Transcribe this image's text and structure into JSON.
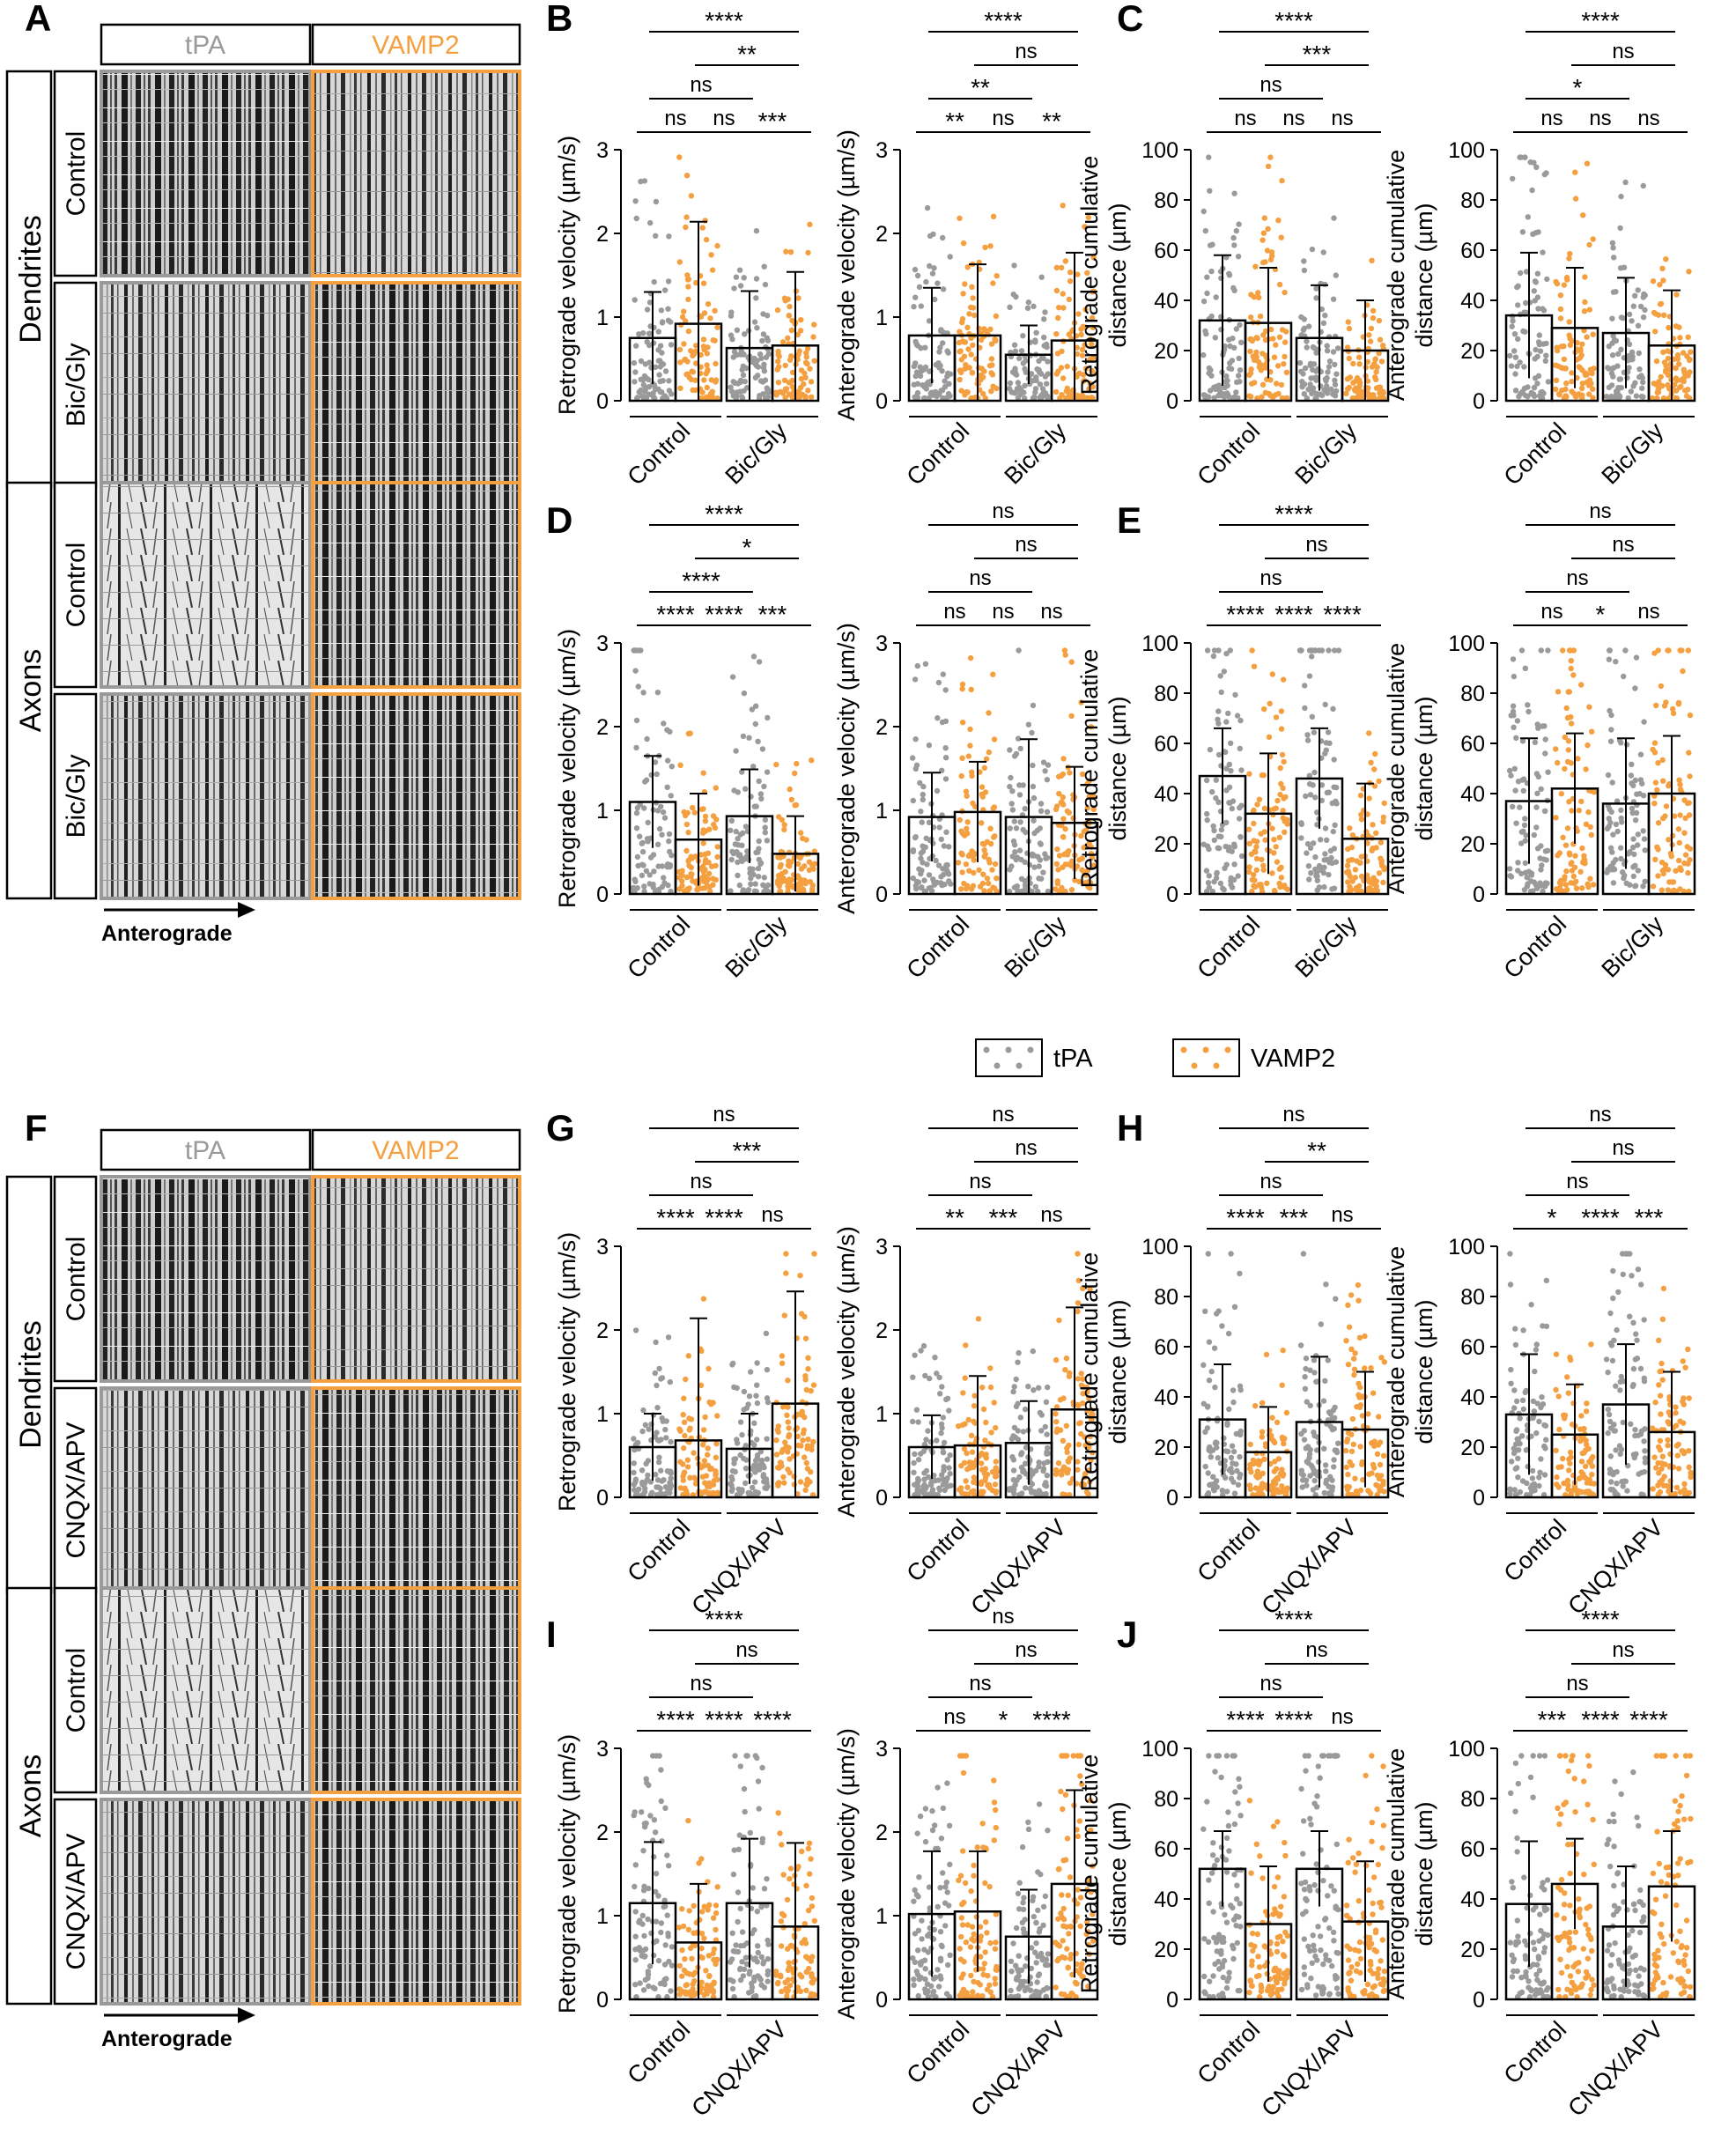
{
  "colors": {
    "tpa": "#9a9a9a",
    "vamp2": "#f5a040",
    "frame_tpa": "#9a9a9a",
    "frame_vamp2": "#f5a040"
  },
  "kymo": {
    "tpa": "tPA",
    "vamp2": "VAMP2",
    "dendrites": "Dendrites",
    "axons": "Axons",
    "control": "Control",
    "bicgly": "Bic/Gly",
    "cnqx": "CNQX/APV",
    "anterograde": "Anterograde"
  },
  "legend": {
    "tpa": "tPA",
    "vamp2": "VAMP2"
  },
  "panels": [
    {
      "letter": "A"
    },
    {
      "letter": "B"
    },
    {
      "letter": "C"
    },
    {
      "letter": "D"
    },
    {
      "letter": "E"
    },
    {
      "letter": "F"
    },
    {
      "letter": "G"
    },
    {
      "letter": "H"
    },
    {
      "letter": "I"
    },
    {
      "letter": "J"
    }
  ],
  "chart_data": [
    {
      "id": "B1",
      "type": "bar",
      "ylabel": "Retrograde velocity (µm/s)",
      "ylim": [
        0,
        3
      ],
      "yticks": [
        0,
        1,
        2,
        3
      ],
      "groups": [
        "Control",
        "Bic/Gly"
      ],
      "series": [
        {
          "name": "tPA",
          "values": [
            0.75,
            0.63
          ]
        },
        {
          "name": "VAMP2",
          "values": [
            0.92,
            0.66
          ]
        }
      ],
      "sd": [
        0.55,
        1.22,
        0.68,
        0.88
      ],
      "sig": [
        "ns",
        "ns",
        "***",
        "ns",
        "**",
        "****"
      ]
    },
    {
      "id": "B2",
      "type": "bar",
      "ylabel": "Anterograde velocity (µm/s)",
      "ylim": [
        0,
        3
      ],
      "yticks": [
        0,
        1,
        2,
        3
      ],
      "groups": [
        "Control",
        "Bic/Gly"
      ],
      "series": [
        {
          "name": "tPA",
          "values": [
            0.78,
            0.55
          ]
        },
        {
          "name": "VAMP2",
          "values": [
            0.78,
            0.72
          ]
        }
      ],
      "sd": [
        0.57,
        0.85,
        0.35,
        1.05
      ],
      "sig": [
        "**",
        "ns",
        "**",
        "**",
        "ns",
        "****"
      ]
    },
    {
      "id": "C1",
      "type": "bar",
      "ylabel": "Retrograde cumulative distance (µm)",
      "ylim": [
        0,
        100
      ],
      "yticks": [
        0,
        20,
        40,
        60,
        80,
        100
      ],
      "groups": [
        "Control",
        "Bic/Gly"
      ],
      "series": [
        {
          "name": "tPA",
          "values": [
            32,
            25
          ]
        },
        {
          "name": "VAMP2",
          "values": [
            31,
            20
          ]
        }
      ],
      "sd": [
        26,
        22,
        21,
        20
      ],
      "sig": [
        "ns",
        "ns",
        "ns",
        "ns",
        "***",
        "****"
      ]
    },
    {
      "id": "C2",
      "type": "bar",
      "ylabel": "Anterograde cumulative distance (µm)",
      "ylim": [
        0,
        100
      ],
      "yticks": [
        0,
        20,
        40,
        60,
        80,
        100
      ],
      "groups": [
        "Control",
        "Bic/Gly"
      ],
      "series": [
        {
          "name": "tPA",
          "values": [
            34,
            27
          ]
        },
        {
          "name": "VAMP2",
          "values": [
            29,
            22
          ]
        }
      ],
      "sd": [
        25,
        24,
        22,
        22
      ],
      "sig": [
        "ns",
        "ns",
        "ns",
        "*",
        "ns",
        "****"
      ]
    },
    {
      "id": "D1",
      "type": "bar",
      "ylabel": "Retrograde velocity (µm/s)",
      "ylim": [
        0,
        3
      ],
      "yticks": [
        0,
        1,
        2,
        3
      ],
      "groups": [
        "Control",
        "Bic/Gly"
      ],
      "series": [
        {
          "name": "tPA",
          "values": [
            1.1,
            0.93
          ]
        },
        {
          "name": "VAMP2",
          "values": [
            0.65,
            0.48
          ]
        }
      ],
      "sd": [
        0.55,
        0.55,
        0.56,
        0.45
      ],
      "sig": [
        "****",
        "****",
        "***",
        "****",
        "*",
        "****"
      ]
    },
    {
      "id": "D2",
      "type": "bar",
      "ylabel": "Anterograde velocity (µm/s)",
      "ylim": [
        0,
        3
      ],
      "yticks": [
        0,
        1,
        2,
        3
      ],
      "groups": [
        "Control",
        "Bic/Gly"
      ],
      "series": [
        {
          "name": "tPA",
          "values": [
            0.92,
            0.92
          ]
        },
        {
          "name": "VAMP2",
          "values": [
            0.98,
            0.85
          ]
        }
      ],
      "sd": [
        0.53,
        0.6,
        0.93,
        0.67
      ],
      "sig": [
        "ns",
        "ns",
        "ns",
        "ns",
        "ns",
        "ns"
      ]
    },
    {
      "id": "E1",
      "type": "bar",
      "ylabel": "Retrograde cumulative distance (µm)",
      "ylim": [
        0,
        100
      ],
      "yticks": [
        0,
        20,
        40,
        60,
        80,
        100
      ],
      "groups": [
        "Control",
        "Bic/Gly"
      ],
      "series": [
        {
          "name": "tPA",
          "values": [
            47,
            46
          ]
        },
        {
          "name": "VAMP2",
          "values": [
            32,
            22
          ]
        }
      ],
      "sd": [
        19,
        24,
        20,
        22
      ],
      "sig": [
        "****",
        "****",
        "****",
        "ns",
        "ns",
        "****"
      ]
    },
    {
      "id": "E2",
      "type": "bar",
      "ylabel": "Anterograde cumulative distance (µm)",
      "ylim": [
        0,
        100
      ],
      "yticks": [
        0,
        20,
        40,
        60,
        80,
        100
      ],
      "groups": [
        "Control",
        "Bic/Gly"
      ],
      "series": [
        {
          "name": "tPA",
          "values": [
            37,
            36
          ]
        },
        {
          "name": "VAMP2",
          "values": [
            42,
            40
          ]
        }
      ],
      "sd": [
        25,
        22,
        26,
        23
      ],
      "sig": [
        "ns",
        "*",
        "ns",
        "ns",
        "ns",
        "ns"
      ]
    },
    {
      "id": "G1",
      "type": "bar",
      "ylabel": "Retrograde velocity (µm/s)",
      "ylim": [
        0,
        3
      ],
      "yticks": [
        0,
        1,
        2,
        3
      ],
      "groups": [
        "Control",
        "CNQX/APV"
      ],
      "series": [
        {
          "name": "tPA",
          "values": [
            0.6,
            0.58
          ]
        },
        {
          "name": "VAMP2",
          "values": [
            0.68,
            1.12
          ]
        }
      ],
      "sd": [
        0.4,
        1.46,
        0.42,
        1.34
      ],
      "sig": [
        "****",
        "****",
        "ns",
        "ns",
        "***",
        "ns"
      ]
    },
    {
      "id": "G2",
      "type": "bar",
      "ylabel": "Anterograde velocity (µm/s)",
      "ylim": [
        0,
        3
      ],
      "yticks": [
        0,
        1,
        2,
        3
      ],
      "groups": [
        "Control",
        "CNQX/APV"
      ],
      "series": [
        {
          "name": "tPA",
          "values": [
            0.6,
            0.65
          ]
        },
        {
          "name": "VAMP2",
          "values": [
            0.62,
            1.05
          ]
        }
      ],
      "sd": [
        0.38,
        0.83,
        0.5,
        1.22
      ],
      "sig": [
        "**",
        "***",
        "ns",
        "ns",
        "ns",
        "ns"
      ]
    },
    {
      "id": "H1",
      "type": "bar",
      "ylabel": "Retrograde cumulative distance (µm)",
      "ylim": [
        0,
        100
      ],
      "yticks": [
        0,
        20,
        40,
        60,
        80,
        100
      ],
      "groups": [
        "Control",
        "CNQX/APV"
      ],
      "series": [
        {
          "name": "tPA",
          "values": [
            31,
            30
          ]
        },
        {
          "name": "VAMP2",
          "values": [
            18,
            27
          ]
        }
      ],
      "sd": [
        22,
        18,
        26,
        23
      ],
      "sig": [
        "****",
        "***",
        "ns",
        "ns",
        "**",
        "ns"
      ]
    },
    {
      "id": "H2",
      "type": "bar",
      "ylabel": "Anterograde cumulative distance (µm)",
      "ylim": [
        0,
        100
      ],
      "yticks": [
        0,
        20,
        40,
        60,
        80,
        100
      ],
      "groups": [
        "Control",
        "CNQX/APV"
      ],
      "series": [
        {
          "name": "tPA",
          "values": [
            33,
            37
          ]
        },
        {
          "name": "VAMP2",
          "values": [
            25,
            26
          ]
        }
      ],
      "sd": [
        24,
        20,
        24,
        24
      ],
      "sig": [
        "*",
        "****",
        "***",
        "ns",
        "ns",
        "ns"
      ]
    },
    {
      "id": "I1",
      "type": "bar",
      "ylabel": "Retrograde velocity (µm/s)",
      "ylim": [
        0,
        3
      ],
      "yticks": [
        0,
        1,
        2,
        3
      ],
      "groups": [
        "Control",
        "CNQX/APV"
      ],
      "series": [
        {
          "name": "tPA",
          "values": [
            1.15,
            1.15
          ]
        },
        {
          "name": "VAMP2",
          "values": [
            0.68,
            0.87
          ]
        }
      ],
      "sd": [
        0.73,
        0.7,
        0.77,
        1.0
      ],
      "sig": [
        "****",
        "****",
        "****",
        "ns",
        "ns",
        "****"
      ]
    },
    {
      "id": "I2",
      "type": "bar",
      "ylabel": "Anterograde velocity (µm/s)",
      "ylim": [
        0,
        3
      ],
      "yticks": [
        0,
        1,
        2,
        3
      ],
      "groups": [
        "Control",
        "CNQX/APV"
      ],
      "series": [
        {
          "name": "tPA",
          "values": [
            1.02,
            0.75
          ]
        },
        {
          "name": "VAMP2",
          "values": [
            1.05,
            1.38
          ]
        }
      ],
      "sd": [
        0.75,
        0.72,
        0.56,
        1.12
      ],
      "sig": [
        "ns",
        "*",
        "****",
        "ns",
        "ns",
        "ns"
      ]
    },
    {
      "id": "J1",
      "type": "bar",
      "ylabel": "Retrograde cumulative distance (µm)",
      "ylim": [
        0,
        100
      ],
      "yticks": [
        0,
        20,
        40,
        60,
        80,
        100
      ],
      "groups": [
        "Control",
        "CNQX/APV"
      ],
      "series": [
        {
          "name": "tPA",
          "values": [
            52,
            52
          ]
        },
        {
          "name": "VAMP2",
          "values": [
            30,
            31
          ]
        }
      ],
      "sd": [
        15,
        23,
        15,
        24
      ],
      "sig": [
        "****",
        "****",
        "ns",
        "ns",
        "ns",
        "****"
      ]
    },
    {
      "id": "J2",
      "type": "bar",
      "ylabel": "Anterograde cumulative distance (µm)",
      "ylim": [
        0,
        100
      ],
      "yticks": [
        0,
        20,
        40,
        60,
        80,
        100
      ],
      "groups": [
        "Control",
        "CNQX/APV"
      ],
      "series": [
        {
          "name": "tPA",
          "values": [
            38,
            29
          ]
        },
        {
          "name": "VAMP2",
          "values": [
            46,
            45
          ]
        }
      ],
      "sd": [
        25,
        18,
        24,
        22
      ],
      "sig": [
        "***",
        "****",
        "****",
        "ns",
        "ns",
        "****"
      ]
    }
  ]
}
